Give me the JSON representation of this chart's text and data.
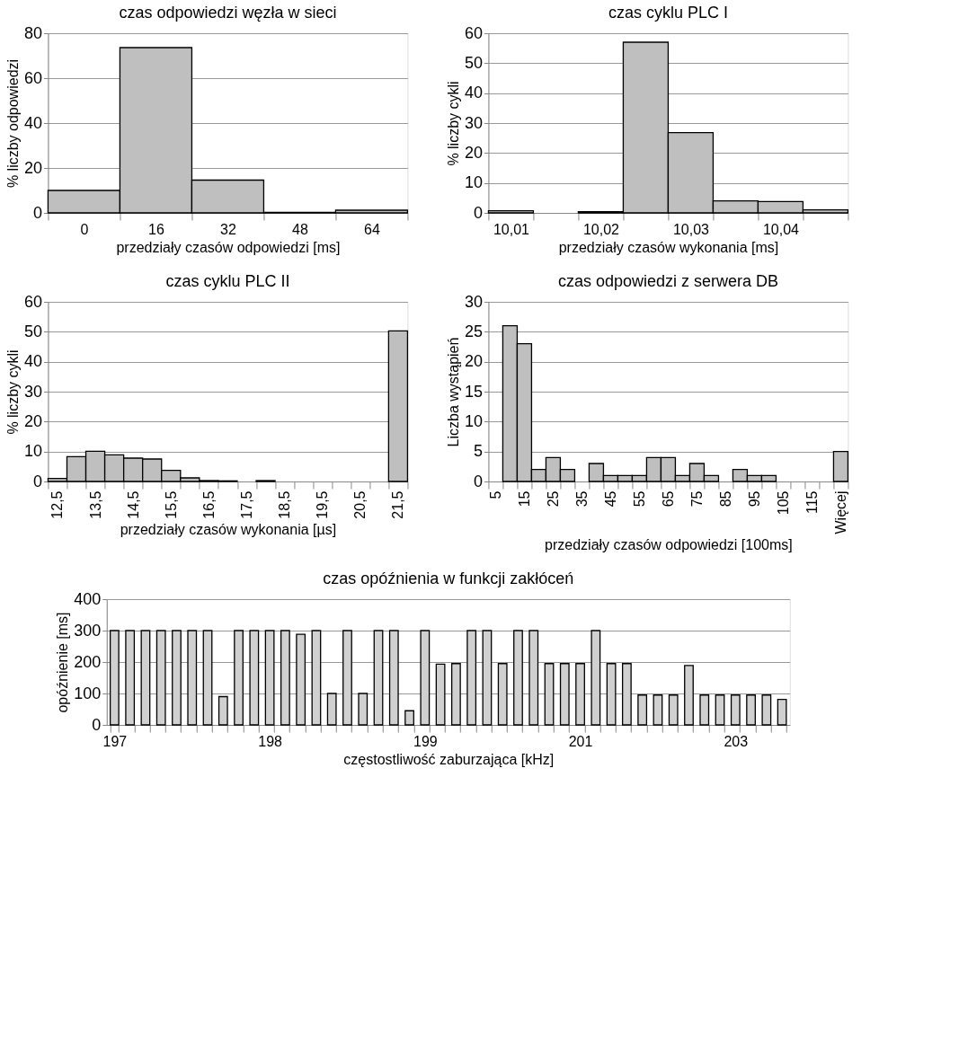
{
  "chart_data": [
    {
      "type": "bar",
      "title": "czas odpowiedzi węzła w sieci",
      "xlabel": "przedziały czasów odpowiedzi [ms]",
      "ylabel": "% liczby odpowiedzi",
      "categories": [
        "0",
        "16",
        "32",
        "48",
        "64"
      ],
      "values": [
        10,
        73.6,
        14.6,
        0.2,
        1.2
      ],
      "color": "#bfbfbf",
      "ylim": [
        0,
        80
      ],
      "yticks": [
        0,
        20,
        40,
        60,
        80
      ],
      "grid": "y"
    },
    {
      "type": "bar",
      "title": "czas cyklu PLC I",
      "xlabel": "przedziały czasów wykonania [ms]",
      "ylabel": "% liczby cykli",
      "categories": [
        "10,01",
        null,
        "10,02",
        null,
        "10,03",
        null,
        "10,04",
        null
      ],
      "values": [
        0.7,
        0,
        0.4,
        57,
        26.8,
        4.0,
        3.8,
        1.0
      ],
      "color": "#bfbfbf",
      "ylim": [
        0,
        60
      ],
      "yticks": [
        0,
        10,
        20,
        30,
        40,
        50,
        60
      ],
      "grid": "y"
    },
    {
      "type": "bar",
      "title": "czas cyklu PLC II",
      "xlabel": "przedziały czasów wykonania [µs]",
      "ylabel": "% liczby cykli",
      "categories": [
        "12,5",
        null,
        "13,5",
        null,
        "14,5",
        null,
        "15,5",
        null,
        "16,5",
        null,
        "17,5",
        null,
        "18,5",
        null,
        "19,5",
        null,
        "20,5",
        null,
        "21,5"
      ],
      "values": [
        1.0,
        8.3,
        10.1,
        8.9,
        7.8,
        7.5,
        3.7,
        1.2,
        0.3,
        0.2,
        0,
        0.3,
        0,
        0,
        0,
        0,
        0,
        0,
        50.3
      ],
      "color": "#bfbfbf",
      "ylim": [
        0,
        60
      ],
      "yticks": [
        0,
        10,
        20,
        30,
        40,
        50,
        60
      ],
      "grid": "y"
    },
    {
      "type": "bar",
      "title": "czas odpowiedzi z serwera DB",
      "xlabel": "przedziały czasów odpowiedzi [100ms]",
      "ylabel": "Liczba wystąpień",
      "categories": [
        "5",
        null,
        "15",
        null,
        "25",
        null,
        "35",
        null,
        "45",
        null,
        "55",
        null,
        "65",
        null,
        "75",
        null,
        "85",
        null,
        "95",
        null,
        "105",
        null,
        "115",
        null,
        "Więcej"
      ],
      "values": [
        0,
        26,
        23,
        2,
        4,
        2,
        0,
        3,
        1,
        1,
        1,
        4,
        4,
        1,
        3,
        1,
        0,
        2,
        1,
        1,
        0,
        0,
        0,
        0,
        5
      ],
      "color": "#bfbfbf",
      "ylim": [
        0,
        30
      ],
      "yticks": [
        0,
        5,
        10,
        15,
        20,
        25,
        30
      ],
      "grid": "y"
    },
    {
      "type": "bar",
      "title": "czas opóźnienia w funkcji zakłóceń",
      "xlabel": "częstostliwość zaburzająca [kHz]",
      "ylabel": "opóźnienie [ms]",
      "categories": [
        "197",
        null,
        null,
        null,
        null,
        null,
        null,
        null,
        null,
        null,
        "198",
        null,
        null,
        null,
        null,
        null,
        null,
        null,
        null,
        null,
        "199",
        null,
        null,
        null,
        null,
        null,
        null,
        null,
        null,
        null,
        "201",
        null,
        null,
        null,
        null,
        null,
        null,
        null,
        null,
        null,
        "203",
        null,
        null,
        null
      ],
      "values": [
        300,
        300,
        300,
        300,
        300,
        300,
        300,
        90,
        300,
        300,
        300,
        300,
        288,
        300,
        100,
        300,
        100,
        300,
        300,
        45,
        300,
        193,
        195,
        300,
        300,
        195,
        300,
        300,
        195,
        195,
        195,
        300,
        195,
        195,
        95,
        95,
        95,
        189,
        95,
        95,
        95,
        95,
        95,
        81
      ],
      "color": "#d0d0d0",
      "ylim": [
        0,
        400
      ],
      "yticks": [
        0,
        100,
        200,
        300,
        400
      ],
      "grid": "y"
    }
  ]
}
